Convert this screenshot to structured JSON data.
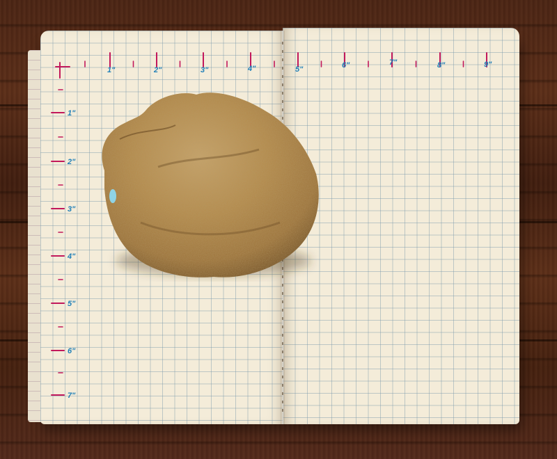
{
  "photo": {
    "subject": "stone",
    "background": "wood-floor",
    "colors": {
      "wood": "#4a2414",
      "paper": "#f4ecd9",
      "grid": "#7896aa",
      "tick_marks": "#c2185b",
      "inch_labels": "#1f7fb8",
      "stone": "#b0884a"
    }
  },
  "ruler": {
    "top_labels": [
      "1\"",
      "2\"",
      "3\"",
      "4\"",
      "5\"",
      "6\"",
      "7\"",
      "8\"",
      "9\""
    ],
    "side_labels": [
      "1\"",
      "2\"",
      "3\"",
      "4\"",
      "5\"",
      "6\"",
      "7\""
    ]
  }
}
